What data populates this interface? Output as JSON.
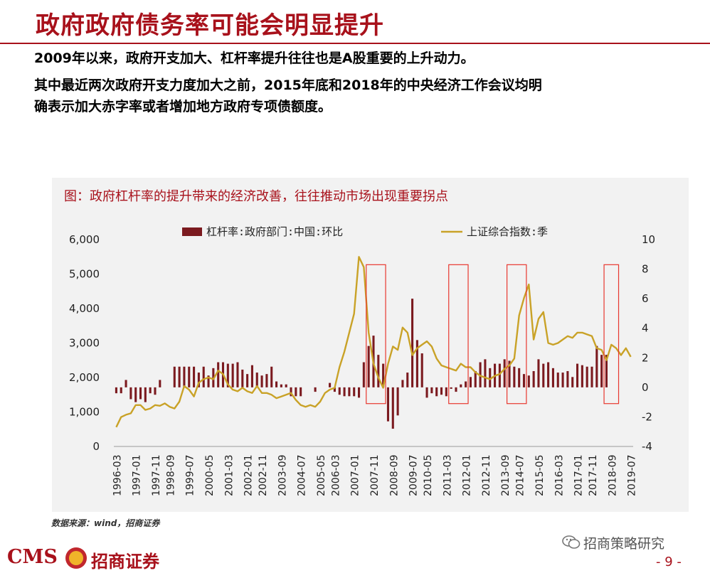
{
  "slide": {
    "title": "政府政府债务率可能会明显提升",
    "para1": "2009年以来，政府开支加大、杠杆率提升往往也是A股重要的上升动力。",
    "para2": "其中最近两次政府开支力度加大之前，2015年底和2018年的中央经济工作会议均明",
    "para3": "确表示加大赤字率或者增加地方政府专项债额度。",
    "source": "数据来源：wind，招商证券",
    "logo_text": "CMS",
    "logo_name": "招商证券",
    "wechat": "招商策略研究",
    "page_number": "- 9 -"
  },
  "colors": {
    "title": "#a8111b",
    "bar": "#7b1a1f",
    "line": "#c9a227",
    "highlight_box": "#e8382f",
    "chart_bg": "#f2f2f2"
  },
  "chart_data": {
    "type": "bar+line",
    "caption": "图：政府杠杆率的提升带来的经济改善，往往推动市场出现重要拐点",
    "legend_position": "top",
    "grid": false,
    "x_tick_labels": [
      "1996-03",
      "1997-01",
      "1997-11",
      "1998-09",
      "1999-07",
      "2000-05",
      "2001-03",
      "2002-01",
      "2002-11",
      "2003-09",
      "2004-07",
      "2005-05",
      "2006-03",
      "2007-01",
      "2007-11",
      "2008-09",
      "2009-07",
      "2010-05",
      "2011-03",
      "2012-01",
      "2012-11",
      "2013-09",
      "2014-07",
      "2015-05",
      "2016-03",
      "2017-01",
      "2017-11",
      "2018-09",
      "2019-07"
    ],
    "left_axis": {
      "ylim": [
        0,
        6000
      ],
      "ticks": [
        "0",
        "1,000",
        "2,000",
        "3,000",
        "4,000",
        "5,000",
        "6,000"
      ]
    },
    "right_axis": {
      "ylim": [
        -4,
        10
      ],
      "ticks": [
        "-4",
        "-2",
        "0",
        "2",
        "4",
        "6",
        "8",
        "10"
      ]
    },
    "series": [
      {
        "name": "杠杆率:政府部门:中国:环比",
        "kind": "bar",
        "axis": "right",
        "values": [
          -0.4,
          -0.4,
          0.5,
          -0.8,
          -1.0,
          -0.8,
          -1.0,
          -0.4,
          -0.5,
          0.5,
          0,
          0,
          1.4,
          1.4,
          1.4,
          1.4,
          1.4,
          1.0,
          1.4,
          0.8,
          1.3,
          1.7,
          1.7,
          1.6,
          1.6,
          1.7,
          1.2,
          0.9,
          1.5,
          1.0,
          0.8,
          0.9,
          1.4,
          0.4,
          0.2,
          0.2,
          -0.6,
          -0.6,
          -0.6,
          0,
          0,
          -0.3,
          0,
          0,
          0.3,
          -0.3,
          -0.5,
          -0.6,
          -0.6,
          -0.6,
          -0.7,
          1.7,
          2.8,
          3.5,
          2.2,
          1.6,
          -2.3,
          -2.8,
          -1.9,
          0.5,
          1.0,
          6.0,
          3.2,
          2.3,
          -0.7,
          -0.4,
          -0.6,
          -0.5,
          -0.6,
          -0.1,
          -0.3,
          0.2,
          0.4,
          0.7,
          1.1,
          1.7,
          1.9,
          1.3,
          1.6,
          1.6,
          1.9,
          1.8,
          1.4,
          1.3,
          0.9,
          0.8,
          1.1,
          1.9,
          1.6,
          1.7,
          1.3,
          1.0,
          1.0,
          1.1,
          0.7,
          1.6,
          1.5,
          1.4,
          1.4,
          2.8,
          2.2,
          2.2
        ]
      },
      {
        "name": "上证综合指数:季",
        "kind": "line",
        "axis": "left",
        "values": [
          560,
          852,
          920,
          960,
          1200,
          1200,
          1060,
          1100,
          1200,
          1180,
          1250,
          1150,
          1100,
          1300,
          1750,
          1650,
          1450,
          1850,
          1950,
          2000,
          1950,
          2200,
          2100,
          1800,
          1650,
          1600,
          1700,
          1600,
          1550,
          1750,
          1550,
          1550,
          1500,
          1400,
          1450,
          1500,
          1550,
          1350,
          1200,
          1150,
          1200,
          1150,
          1300,
          1550,
          1650,
          1700,
          2300,
          2750,
          3300,
          3850,
          5500,
          5200,
          3300,
          2400,
          2000,
          1700,
          2400,
          2900,
          2800,
          3450,
          3300,
          2650,
          2850,
          2950,
          3050,
          2900,
          2550,
          2350,
          2300,
          2250,
          2200,
          2400,
          2300,
          2300,
          2150,
          2050,
          2000,
          1950,
          2050,
          2100,
          2250,
          2350,
          2550,
          3800,
          4300,
          4700,
          3100,
          3700,
          3900,
          3000,
          2950,
          3000,
          3100,
          3200,
          3150,
          3300,
          3300,
          3250,
          3200,
          2850,
          2800,
          2500,
          2950,
          2850,
          2650,
          2850,
          2600
        ]
      }
    ],
    "highlight_boxes": [
      {
        "start_index": 52,
        "end_index": 55
      },
      {
        "start_index": 69,
        "end_index": 72
      },
      {
        "start_index": 81,
        "end_index": 84
      },
      {
        "start_index": 101,
        "end_index": 103
      }
    ]
  }
}
